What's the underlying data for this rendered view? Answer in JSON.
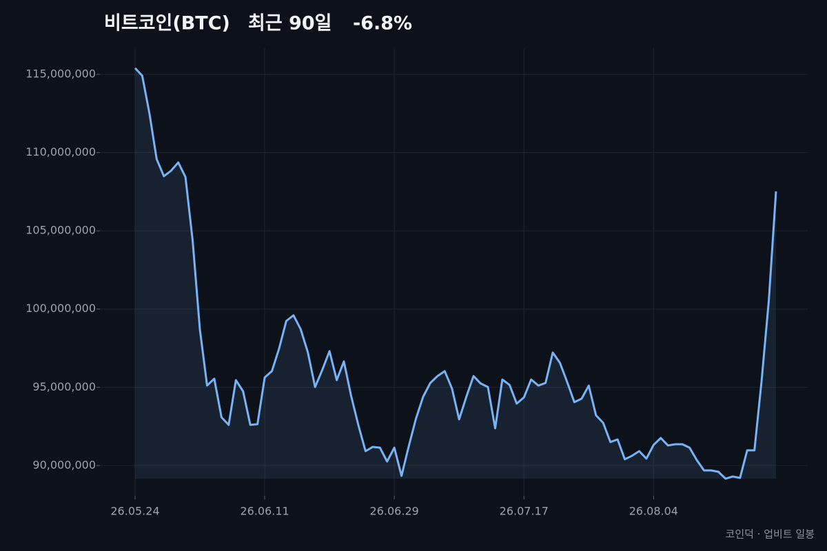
{
  "chart_data": {
    "type": "line",
    "title": "비트코인(BTC)",
    "period": "최근 90일",
    "change": "-6.8%",
    "source": "코인덕 · 업비트 일봉",
    "x": [
      "26.05.24",
      "26.05.25",
      "26.05.26",
      "26.05.27",
      "26.05.28",
      "26.05.29",
      "26.05.30",
      "26.05.31",
      "26.06.01",
      "26.06.02",
      "26.06.03",
      "26.06.04",
      "26.06.05",
      "26.06.06",
      "26.06.07",
      "26.06.08",
      "26.06.09",
      "26.06.10",
      "26.06.11",
      "26.06.12",
      "26.06.13",
      "26.06.14",
      "26.06.15",
      "26.06.16",
      "26.06.17",
      "26.06.18",
      "26.06.19",
      "26.06.20",
      "26.06.21",
      "26.06.22",
      "26.06.23",
      "26.06.24",
      "26.06.25",
      "26.06.26",
      "26.06.27",
      "26.06.28",
      "26.06.29",
      "26.06.30",
      "26.07.01",
      "26.07.02",
      "26.07.03",
      "26.07.04",
      "26.07.05",
      "26.07.06",
      "26.07.07",
      "26.07.08",
      "26.07.09",
      "26.07.10",
      "26.07.11",
      "26.07.12",
      "26.07.13",
      "26.07.14",
      "26.07.15",
      "26.07.16",
      "26.07.17",
      "26.07.18",
      "26.07.19",
      "26.07.20",
      "26.07.21",
      "26.07.22",
      "26.07.23",
      "26.07.24",
      "26.07.25",
      "26.07.26",
      "26.07.27",
      "26.07.28",
      "26.07.29",
      "26.07.30",
      "26.07.31",
      "26.08.01",
      "26.08.02",
      "26.08.03",
      "26.08.04",
      "26.08.05",
      "26.08.06",
      "26.08.07",
      "26.08.08",
      "26.08.09",
      "26.08.10",
      "26.08.11",
      "26.08.12",
      "26.08.13",
      "26.08.14",
      "26.08.15",
      "26.08.16",
      "26.08.17",
      "26.08.18",
      "26.08.19",
      "26.08.20",
      "26.08.21"
    ],
    "series": [
      {
        "name": "BTC",
        "color": "#78b4f5",
        "values": [
          115400000,
          114910000,
          112490000,
          109590000,
          108490000,
          108840000,
          109370000,
          108440000,
          104350000,
          98710000,
          95110000,
          95550000,
          93080000,
          92600000,
          95460000,
          94750000,
          92600000,
          92640000,
          95630000,
          96030000,
          97480000,
          99240000,
          99600000,
          98710000,
          97220000,
          95020000,
          96120000,
          97310000,
          95460000,
          96650000,
          94450000,
          92600000,
          90920000,
          91190000,
          91140000,
          90260000,
          91140000,
          89340000,
          91230000,
          92990000,
          94400000,
          95280000,
          95720000,
          96030000,
          94930000,
          92950000,
          94400000,
          95720000,
          95240000,
          95020000,
          92380000,
          95500000,
          95150000,
          93960000,
          94360000,
          95500000,
          95110000,
          95280000,
          97220000,
          96560000,
          95330000,
          94050000,
          94270000,
          95110000,
          93210000,
          92730000,
          91500000,
          91670000,
          90400000,
          90620000,
          90920000,
          90440000,
          91320000,
          91760000,
          91280000,
          91360000,
          91360000,
          91140000,
          90350000,
          89690000,
          89690000,
          89600000,
          89160000,
          89300000,
          89210000,
          90970000,
          90970000,
          95410000,
          100560000,
          107520000
        ]
      }
    ],
    "xticks": [
      "26.05.24",
      "26.06.11",
      "26.06.29",
      "26.07.17",
      "26.08.04"
    ],
    "ylim": [
      88060000,
      116670000
    ],
    "yticks": [
      {
        "value": 90000000,
        "label": "90,000,000"
      },
      {
        "value": 95000000,
        "label": "95,000,000"
      },
      {
        "value": 100000000,
        "label": "100,000,000"
      },
      {
        "value": 105000000,
        "label": "105,000,000"
      },
      {
        "value": 110000000,
        "label": "110,000,000"
      },
      {
        "value": 115000000,
        "label": "115,000,000"
      }
    ],
    "grid": true
  }
}
